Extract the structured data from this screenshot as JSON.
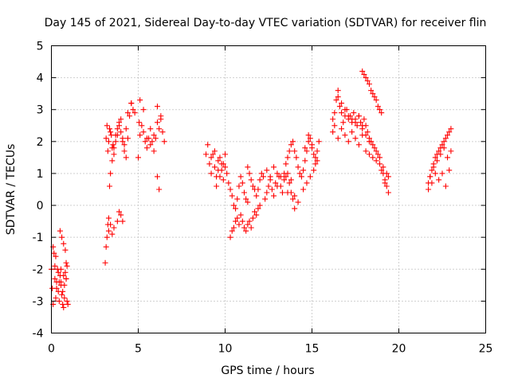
{
  "chart_data": {
    "type": "scatter",
    "title": "Day 145 of 2021, Sidereal Day-to-day VTEC variation (SDTVAR) for receiver flin",
    "xlabel": "GPS time / hours",
    "ylabel": "SDTVAR / TECUs",
    "xlim": [
      0,
      25
    ],
    "ylim": [
      -4,
      5
    ],
    "xticks": [
      "0",
      "5",
      "10",
      "15",
      "20",
      "25"
    ],
    "yticks": [
      "-4",
      "-3",
      "-2",
      "-1",
      "0",
      "1",
      "2",
      "3",
      "4",
      "5"
    ],
    "grid": true,
    "marker": "+",
    "series_color": "#ff0000",
    "series": [
      {
        "name": "SDTVAR",
        "x": [
          0.0,
          0.05,
          0.1,
          0.15,
          0.2,
          0.25,
          0.3,
          0.35,
          0.4,
          0.45,
          0.5,
          0.55,
          0.6,
          0.65,
          0.7,
          0.75,
          0.8,
          0.85,
          0.9,
          0.95,
          0.1,
          0.2,
          0.3,
          0.45,
          0.55,
          0.65,
          0.75,
          0.85,
          0.9,
          0.5,
          0.6,
          0.7,
          0.8,
          0.85,
          0.25,
          0.4,
          0.55,
          0.7,
          3.1,
          3.15,
          3.2,
          3.25,
          3.3,
          3.35,
          3.4,
          3.5,
          3.6,
          3.7,
          3.8,
          3.9,
          4.0,
          4.1,
          4.2,
          4.3,
          4.4,
          4.5,
          4.6,
          4.7,
          3.2,
          3.3,
          3.4,
          3.5,
          3.6,
          3.7,
          3.8,
          3.9,
          4.0,
          4.1,
          4.2,
          4.3,
          4.4,
          3.3,
          3.4,
          3.5,
          3.6,
          3.8,
          3.9,
          4.0,
          4.1,
          3.15,
          3.25,
          3.35,
          3.45,
          3.55,
          5.0,
          5.1,
          5.2,
          5.3,
          5.4,
          5.5,
          5.6,
          5.7,
          5.8,
          5.9,
          6.0,
          6.1,
          6.2,
          6.3,
          6.4,
          6.5,
          5.1,
          5.3,
          5.5,
          5.7,
          5.9,
          6.1,
          6.3,
          6.1,
          6.2,
          5.05,
          4.6,
          4.8,
          8.9,
          9.0,
          9.1,
          9.2,
          9.3,
          9.4,
          9.5,
          9.6,
          9.7,
          9.8,
          9.9,
          10.0,
          10.1,
          10.2,
          10.3,
          9.2,
          9.4,
          9.6,
          9.8,
          10.0,
          9.5,
          9.7,
          9.9,
          10.4,
          10.5,
          10.6,
          10.7,
          10.8,
          10.9,
          11.0,
          11.1,
          11.2,
          11.3,
          10.3,
          10.4,
          10.5,
          10.6,
          10.7,
          10.8,
          10.9,
          11.0,
          11.1,
          11.2,
          11.3,
          11.4,
          11.5,
          11.6,
          11.7,
          11.8,
          11.9,
          12.0,
          11.3,
          11.4,
          11.5,
          11.6,
          11.7,
          11.8,
          11.9,
          12.0,
          12.1,
          12.2,
          12.3,
          12.4,
          12.5,
          12.6,
          12.7,
          12.8,
          12.9,
          13.0,
          13.1,
          13.2,
          13.3,
          13.4,
          13.5,
          13.6,
          13.7,
          13.8,
          13.9,
          14.0,
          12.4,
          12.6,
          12.8,
          13.0,
          13.2,
          13.4,
          13.6,
          13.8,
          14.0,
          14.2,
          13.5,
          13.6,
          13.7,
          13.8,
          13.9,
          14.0,
          14.1,
          14.2,
          14.3,
          14.4,
          14.5,
          14.6,
          14.7,
          14.8,
          14.9,
          15.0,
          15.1,
          15.2,
          15.3,
          15.4,
          14.5,
          14.7,
          14.9,
          15.1,
          15.3,
          14.6,
          14.8,
          15.0,
          15.2,
          16.2,
          16.3,
          16.4,
          16.5,
          16.6,
          16.7,
          16.8,
          16.9,
          17.0,
          17.1,
          17.2,
          17.3,
          17.4,
          17.5,
          17.6,
          17.7,
          17.8,
          17.9,
          18.0,
          18.1,
          18.2,
          18.3,
          18.4,
          18.5,
          18.6,
          18.7,
          18.8,
          18.9,
          16.5,
          16.7,
          16.9,
          17.1,
          17.3,
          17.5,
          17.7,
          17.9,
          18.1,
          18.3,
          16.2,
          16.3,
          16.5,
          16.7,
          16.9,
          17.1,
          17.3,
          17.5,
          17.7,
          17.9,
          18.1,
          18.3,
          18.5,
          18.7,
          18.9,
          19.1,
          19.3,
          17.9,
          18.0,
          18.1,
          18.2,
          18.3,
          18.4,
          18.5,
          18.6,
          18.7,
          18.8,
          18.9,
          19.0,
          19.1,
          19.2,
          19.3,
          19.4,
          19.0,
          19.2,
          19.4,
          21.7,
          21.8,
          21.9,
          22.0,
          22.1,
          22.2,
          22.3,
          22.4,
          22.5,
          22.6,
          22.7,
          22.8,
          22.9,
          23.0,
          21.8,
          22.0,
          22.2,
          22.4,
          22.6,
          22.8,
          23.0,
          21.7,
          21.9,
          22.1,
          22.3,
          22.5,
          22.7,
          22.9
        ],
        "y": [
          -2.0,
          -2.6,
          -3.1,
          -1.5,
          -2.3,
          -2.9,
          -2.4,
          -2.0,
          -2.7,
          -3.0,
          -2.2,
          -2.4,
          -2.8,
          -3.1,
          -3.2,
          -2.5,
          -2.1,
          -2.3,
          -3.0,
          -3.1,
          -1.3,
          -1.9,
          -2.6,
          -2.4,
          -2.0,
          -2.7,
          -2.9,
          -2.3,
          -1.9,
          -0.8,
          -1.0,
          -1.2,
          -1.4,
          -1.8,
          -1.6,
          -2.1,
          -2.5,
          -2.2,
          -1.8,
          -1.3,
          -1.0,
          -0.6,
          -0.4,
          0.6,
          1.0,
          1.4,
          1.8,
          2.2,
          2.4,
          2.6,
          2.3,
          2.0,
          1.7,
          1.5,
          2.1,
          2.8,
          3.2,
          3.0,
          2.5,
          2.0,
          2.3,
          1.8,
          1.6,
          2.0,
          2.2,
          2.5,
          2.7,
          2.1,
          1.9,
          2.4,
          2.9,
          -0.8,
          -0.6,
          -0.9,
          -0.7,
          -0.5,
          -0.2,
          -0.3,
          -0.5,
          2.1,
          1.7,
          2.4,
          2.2,
          1.9,
          1.5,
          2.2,
          2.5,
          2.3,
          2.0,
          1.8,
          2.1,
          2.4,
          2.0,
          1.7,
          2.1,
          2.6,
          2.4,
          2.7,
          2.3,
          2.0,
          3.3,
          3.0,
          2.1,
          1.9,
          2.2,
          3.1,
          2.8,
          0.9,
          0.5,
          2.6,
          3.2,
          2.9,
          1.6,
          1.9,
          1.3,
          1.0,
          1.6,
          1.2,
          0.9,
          1.1,
          1.5,
          1.3,
          0.8,
          1.2,
          1.0,
          0.7,
          0.5,
          1.5,
          1.7,
          1.4,
          1.1,
          1.6,
          0.6,
          0.9,
          1.3,
          0.3,
          0.0,
          -0.1,
          0.2,
          0.6,
          0.9,
          0.7,
          0.4,
          0.2,
          0.1,
          -1.0,
          -0.8,
          -0.7,
          -0.5,
          -0.4,
          -0.6,
          -0.3,
          -0.5,
          -0.7,
          -0.8,
          -0.6,
          -0.5,
          -0.7,
          -0.4,
          -0.2,
          -0.3,
          -0.1,
          0.0,
          1.2,
          1.0,
          0.8,
          0.6,
          0.5,
          0.3,
          0.5,
          0.8,
          1.0,
          0.9,
          0.2,
          0.4,
          0.6,
          0.8,
          0.5,
          0.3,
          0.7,
          1.0,
          0.9,
          0.6,
          0.4,
          0.8,
          0.9,
          1.0,
          0.7,
          0.4,
          0.2,
          -0.1,
          1.1,
          0.9,
          1.2,
          0.6,
          0.9,
          1.0,
          0.4,
          0.8,
          0.3,
          0.1,
          1.3,
          1.5,
          1.7,
          1.9,
          2.0,
          1.7,
          1.5,
          1.2,
          1.0,
          0.9,
          1.1,
          1.4,
          1.7,
          2.0,
          2.1,
          1.9,
          1.6,
          1.3,
          1.7,
          2.0,
          0.5,
          0.7,
          0.9,
          1.1,
          1.4,
          1.8,
          2.2,
          1.8,
          1.5,
          2.7,
          2.9,
          3.3,
          3.6,
          3.1,
          2.9,
          2.6,
          2.8,
          3.0,
          2.7,
          2.8,
          2.6,
          2.9,
          2.7,
          2.5,
          2.8,
          2.6,
          2.4,
          2.7,
          2.5,
          2.3,
          2.1,
          2.0,
          1.9,
          1.8,
          1.7,
          1.6,
          1.5,
          3.4,
          3.2,
          3.0,
          2.8,
          2.7,
          2.6,
          2.8,
          2.5,
          2.2,
          2.0,
          2.3,
          2.5,
          2.1,
          2.4,
          2.2,
          2.0,
          2.3,
          2.1,
          1.9,
          2.2,
          1.7,
          1.6,
          1.5,
          1.4,
          1.3,
          1.2,
          1.0,
          4.2,
          4.1,
          4.0,
          3.9,
          3.8,
          3.6,
          3.5,
          3.4,
          3.3,
          3.1,
          3.0,
          2.9,
          1.0,
          0.8,
          0.6,
          0.4,
          1.1,
          0.7,
          0.9,
          0.7,
          0.9,
          1.1,
          1.3,
          1.5,
          1.6,
          1.7,
          1.8,
          1.9,
          2.0,
          2.1,
          2.2,
          2.3,
          2.4,
          0.9,
          1.2,
          1.4,
          1.6,
          1.8,
          1.5,
          1.7,
          0.5,
          0.7,
          1.0,
          0.8,
          1.0,
          0.6,
          1.1
        ]
      }
    ]
  }
}
